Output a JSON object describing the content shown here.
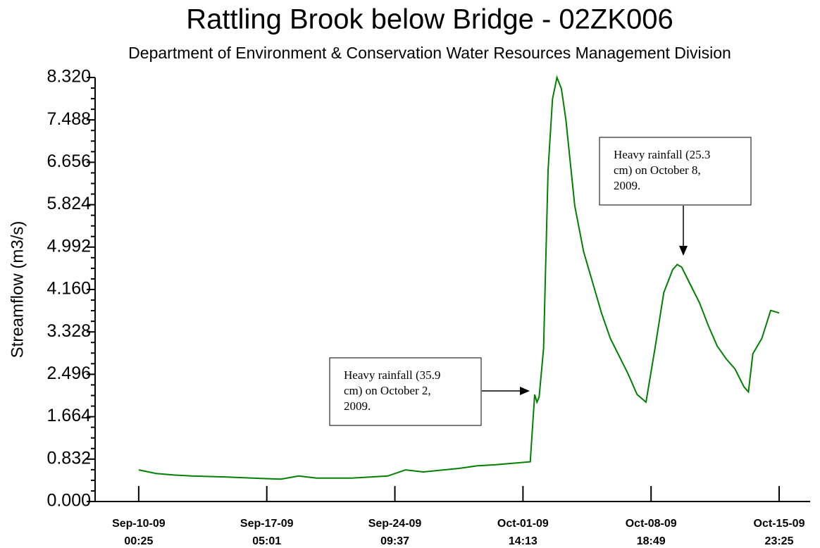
{
  "chart_data": {
    "type": "line",
    "title": "Rattling Brook below Bridge - 02ZK006",
    "subtitle": "Department of Environment & Conservation Water Resources Management Division",
    "y_label": "Streamflow (m3/s)",
    "color": "#008000",
    "x": [
      "2009-09-10T00:25",
      "2009-09-11T00:00",
      "2009-09-12T00:00",
      "2009-09-13T00:00",
      "2009-09-15T00:00",
      "2009-09-17T00:00",
      "2009-09-18T00:00",
      "2009-09-19T00:00",
      "2009-09-20T00:00",
      "2009-09-22T00:00",
      "2009-09-24T00:00",
      "2009-09-25T00:00",
      "2009-09-26T00:00",
      "2009-09-28T00:00",
      "2009-09-29T00:00",
      "2009-09-30T00:00",
      "2009-10-01T00:00",
      "2009-10-02T00:00",
      "2009-10-02T06:00",
      "2009-10-02T09:00",
      "2009-10-02T12:00",
      "2009-10-02T18:00",
      "2009-10-03T00:00",
      "2009-10-03T06:00",
      "2009-10-03T12:00",
      "2009-10-03T18:00",
      "2009-10-04T00:00",
      "2009-10-04T12:00",
      "2009-10-05T00:00",
      "2009-10-05T12:00",
      "2009-10-06T00:00",
      "2009-10-06T12:00",
      "2009-10-07T00:00",
      "2009-10-07T12:00",
      "2009-10-08T00:00",
      "2009-10-08T12:00",
      "2009-10-09T00:00",
      "2009-10-09T12:00",
      "2009-10-10T00:00",
      "2009-10-10T06:00",
      "2009-10-10T12:00",
      "2009-10-11T00:00",
      "2009-10-11T12:00",
      "2009-10-12T00:00",
      "2009-10-12T12:00",
      "2009-10-13T00:00",
      "2009-10-13T12:00",
      "2009-10-14T00:00",
      "2009-10-14T06:00",
      "2009-10-14T12:00",
      "2009-10-15T00:00",
      "2009-10-15T12:00",
      "2009-10-15T23:25"
    ],
    "values": [
      0.62,
      0.55,
      0.52,
      0.5,
      0.48,
      0.45,
      0.44,
      0.5,
      0.46,
      0.46,
      0.5,
      0.62,
      0.58,
      0.65,
      0.7,
      0.72,
      0.75,
      0.78,
      2.1,
      1.95,
      2.05,
      3.0,
      6.5,
      7.9,
      8.32,
      8.1,
      7.5,
      5.8,
      4.9,
      4.3,
      3.7,
      3.2,
      2.85,
      2.5,
      2.1,
      1.95,
      3.0,
      4.1,
      4.55,
      4.65,
      4.6,
      4.25,
      3.9,
      3.45,
      3.05,
      2.8,
      2.6,
      2.25,
      2.15,
      2.9,
      3.2,
      3.75,
      3.7
    ],
    "xlim": [
      "2009-09-07T13:40",
      "2009-10-17T17:10"
    ],
    "xticks": [
      {
        "value": "2009-09-10T00:25",
        "label": "Sep-10-09 00:25"
      },
      {
        "value": "2009-09-17T05:01",
        "label": "Sep-17-09 05:01"
      },
      {
        "value": "2009-09-24T09:37",
        "label": "Sep-24-09 09:37"
      },
      {
        "value": "2009-10-01T14:13",
        "label": "Oct-01-09 14:13"
      },
      {
        "value": "2009-10-08T18:49",
        "label": "Oct-08-09 18:49"
      },
      {
        "value": "2009-10-15T23:25",
        "label": "Oct-15-09 23:25"
      }
    ],
    "ylim": [
      0,
      8.32
    ],
    "yticks": [
      {
        "value": 0,
        "label": "0.000"
      },
      {
        "value": 0.832,
        "label": "0.832"
      },
      {
        "value": 1.664,
        "label": "1.664"
      },
      {
        "value": 2.496,
        "label": "2.496"
      },
      {
        "value": 3.328,
        "label": "3.328"
      },
      {
        "value": 4.16,
        "label": "4.160"
      },
      {
        "value": 4.992,
        "label": "4.992"
      },
      {
        "value": 5.824,
        "label": "5.824"
      },
      {
        "value": 6.656,
        "label": "6.656"
      },
      {
        "value": 7.488,
        "label": "7.488"
      },
      {
        "value": 8.32,
        "label": "8.320"
      }
    ],
    "annotations": [
      {
        "lines": [
          "Heavy rainfall (35.9",
          "cm) on October 2,",
          "2009."
        ]
      },
      {
        "lines": [
          "Heavy rainfall (25.3",
          "cm) on October 8,",
          "2009."
        ]
      }
    ]
  }
}
